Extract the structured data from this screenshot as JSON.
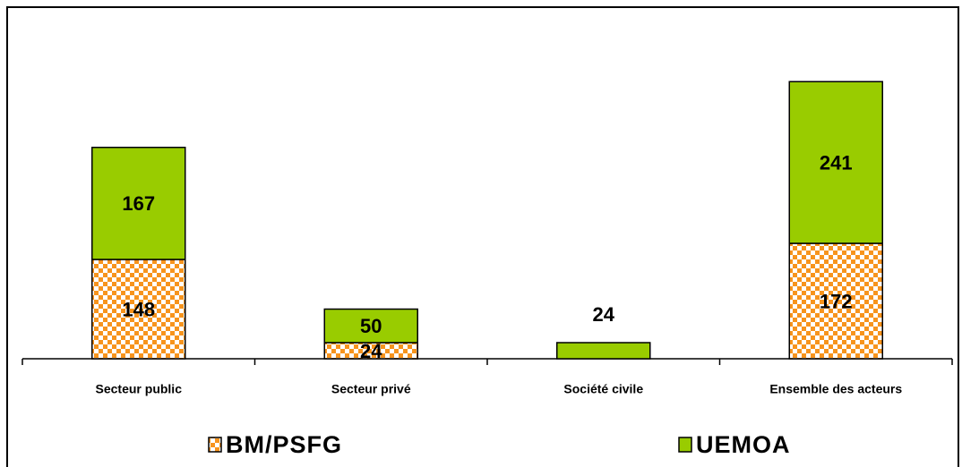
{
  "chart_data": {
    "type": "stacked_bar",
    "categories": [
      "Secteur public",
      "Secteur privé",
      "Société civile",
      "Ensemble des acteurs"
    ],
    "series": [
      {
        "name": "BM/PSFG",
        "color": "#f7941d",
        "values": [
          148,
          24,
          null,
          172
        ]
      },
      {
        "name": "UEMOA",
        "color": "#99cc00",
        "values": [
          167,
          50,
          24,
          241
        ]
      }
    ],
    "ylim": [
      0,
      420
    ],
    "legend": "bottom"
  }
}
